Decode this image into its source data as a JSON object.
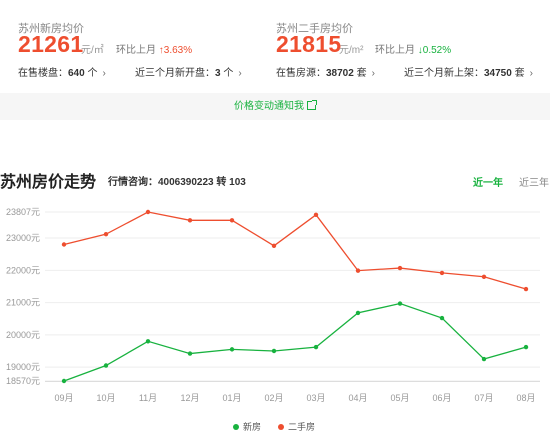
{
  "stats": {
    "new_house": {
      "title": "苏州新房均价",
      "price": "21261",
      "unit": "元/㎡",
      "change_label": "环比上月",
      "change_value": "↑3.63%",
      "link1_label": "在售楼盘：",
      "link1_value": "640",
      "link1_suffix": " 个",
      "link2_label": "近三个月新开盘：",
      "link2_value": "3",
      "link2_suffix": " 个"
    },
    "second_hand": {
      "title": "苏州二手房均价",
      "price": "21815",
      "unit": "元/m²",
      "change_label": "环比上月",
      "change_value": "↓0.52%",
      "link1_label": "在售房源：",
      "link1_value": "38702",
      "link1_suffix": " 套",
      "link2_label": "近三个月新上架：",
      "link2_value": "34750",
      "link2_suffix": " 套"
    },
    "chevron": "›"
  },
  "notify": {
    "label": "价格变动通知我"
  },
  "trend": {
    "title": "苏州房价走势",
    "contact": "行情咨询：4006390223 转 103",
    "tabs": [
      "近一年",
      "近三年"
    ]
  },
  "colors": {
    "red": "#ee4e2f",
    "green": "#18b23f"
  },
  "chart_data": {
    "type": "line",
    "x": [
      "09月",
      "10月",
      "11月",
      "12月",
      "01月",
      "02月",
      "03月",
      "04月",
      "05月",
      "06月",
      "07月",
      "08月"
    ],
    "series": [
      {
        "name": "新房",
        "color": "#18b23f",
        "values": [
          18570,
          19050,
          19800,
          19420,
          19550,
          19500,
          19620,
          20680,
          20970,
          20520,
          19250,
          19620
        ]
      },
      {
        "name": "二手房",
        "color": "#ee4e2f",
        "values": [
          22800,
          23120,
          23807,
          23550,
          23550,
          22760,
          23720,
          21990,
          22070,
          21920,
          21800,
          21420
        ]
      }
    ],
    "y_ticks": [
      "23807元",
      "23000元",
      "22000元",
      "21000元",
      "20000元",
      "19000元",
      "18570元"
    ],
    "y_tick_values": [
      23807,
      23000,
      22000,
      21000,
      20000,
      19000,
      18570
    ],
    "ylim": [
      18570,
      23807
    ],
    "grid": true,
    "legend_position": "bottom"
  }
}
